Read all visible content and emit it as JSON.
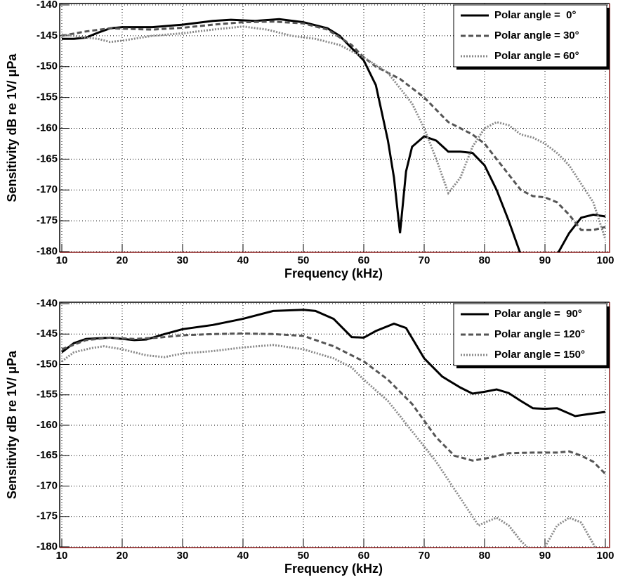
{
  "chart_data": [
    {
      "type": "line",
      "xlabel": "Frequency (kHz)",
      "ylabel": "Sensitivity dB re 1V/ μPa",
      "xlim": [
        10,
        100
      ],
      "ylim": [
        -180,
        -140
      ],
      "xticks": [
        10,
        20,
        30,
        40,
        50,
        60,
        70,
        80,
        90,
        100
      ],
      "yticks": [
        -140,
        -145,
        -150,
        -155,
        -160,
        -165,
        -170,
        -175,
        -180
      ],
      "grid": true,
      "legend": "upper right",
      "series": [
        {
          "name": "Polar angle =  0°",
          "color": "#000000",
          "dash": "solid",
          "x": [
            10,
            12,
            14,
            16,
            18,
            20,
            25,
            30,
            35,
            38,
            42,
            46,
            50,
            54,
            56,
            58,
            60,
            62,
            64,
            65,
            66,
            67,
            68,
            70,
            72,
            74,
            76,
            78,
            80,
            82,
            84,
            86,
            88,
            90,
            92,
            94,
            96,
            98,
            100
          ],
          "values": [
            -145.5,
            -145.5,
            -145.3,
            -144.5,
            -143.8,
            -143.6,
            -143.6,
            -143.2,
            -142.6,
            -142.4,
            -142.6,
            -142.3,
            -142.8,
            -143.8,
            -145,
            -147,
            -149,
            -153,
            -162,
            -168,
            -177,
            -167,
            -163,
            -161.3,
            -162,
            -163.8,
            -163.8,
            -164,
            -166,
            -170,
            -175,
            -180.5,
            -185,
            -185,
            -180.5,
            -177,
            -174.5,
            -174,
            -174.3
          ]
        },
        {
          "name": "Polar angle = 30°",
          "color": "#555555",
          "dash": "dashed",
          "x": [
            10,
            14,
            18,
            25,
            30,
            35,
            40,
            45,
            50,
            54,
            58,
            60,
            62,
            66,
            70,
            72,
            74,
            76,
            78,
            80,
            82,
            84,
            86,
            88,
            90,
            92,
            94,
            96,
            98,
            100
          ],
          "values": [
            -145,
            -144.3,
            -143.8,
            -144,
            -143.7,
            -143.2,
            -142.8,
            -142.7,
            -143,
            -144,
            -146.5,
            -148.5,
            -150,
            -152,
            -155,
            -157,
            -159,
            -160,
            -161,
            -162.5,
            -165,
            -167.5,
            -170,
            -171,
            -171.2,
            -172,
            -174,
            -176.5,
            -176.5,
            -176
          ]
        },
        {
          "name": "Polar angle = 60°",
          "color": "#888888",
          "dash": "dotted",
          "x": [
            10,
            12,
            14,
            16,
            18,
            20,
            25,
            30,
            35,
            40,
            44,
            48,
            52,
            56,
            58,
            60,
            64,
            68,
            70,
            72,
            74,
            76,
            78,
            80,
            82,
            84,
            86,
            88,
            90,
            92,
            94,
            96,
            98,
            100
          ],
          "values": [
            -144.8,
            -145,
            -145.3,
            -145.5,
            -146,
            -145.8,
            -145,
            -144.6,
            -144,
            -143.5,
            -144,
            -145,
            -145.5,
            -146.5,
            -147.5,
            -148.5,
            -151,
            -156,
            -160,
            -165,
            -170.5,
            -168,
            -163,
            -160,
            -159,
            -159.5,
            -161,
            -161.5,
            -162.5,
            -164,
            -166,
            -169,
            -172,
            -178
          ]
        }
      ]
    },
    {
      "type": "line",
      "xlabel": "Frequency (kHz)",
      "ylabel": "Sensitivity dB re 1V/ μPa",
      "xlim": [
        10,
        100
      ],
      "ylim": [
        -180,
        -140
      ],
      "xticks": [
        10,
        20,
        30,
        40,
        50,
        60,
        70,
        80,
        90,
        100
      ],
      "yticks": [
        -140,
        -145,
        -150,
        -155,
        -160,
        -165,
        -170,
        -175,
        -180
      ],
      "grid": true,
      "legend": "upper right",
      "series": [
        {
          "name": "Polar angle =  90°",
          "color": "#000000",
          "dash": "solid",
          "x": [
            10,
            12,
            14,
            18,
            22,
            24,
            27,
            30,
            35,
            40,
            45,
            50,
            52,
            55,
            58,
            60,
            62,
            65,
            67,
            70,
            73,
            76,
            78,
            80,
            82,
            84,
            86,
            88,
            90,
            92,
            95,
            97,
            100
          ],
          "values": [
            -148,
            -146.5,
            -145.8,
            -145.6,
            -146,
            -145.9,
            -145,
            -144.2,
            -143.5,
            -142.5,
            -141.2,
            -141,
            -141.2,
            -142.5,
            -145.5,
            -145.6,
            -144.5,
            -143.3,
            -144,
            -149,
            -152,
            -153.8,
            -154.8,
            -154.5,
            -154.1,
            -154.7,
            -156,
            -157.2,
            -157.3,
            -157.2,
            -158.5,
            -158.2,
            -157.8
          ]
        },
        {
          "name": "Polar angle = 120°",
          "color": "#555555",
          "dash": "dashed",
          "x": [
            10,
            14,
            18,
            22,
            26,
            30,
            35,
            40,
            45,
            50,
            55,
            60,
            64,
            68,
            72,
            75,
            78,
            80,
            84,
            88,
            92,
            94,
            96,
            98,
            100
          ],
          "values": [
            -147.5,
            -146,
            -145.6,
            -145.8,
            -145.6,
            -145.2,
            -145,
            -144.9,
            -145,
            -145.3,
            -147,
            -149.5,
            -152.5,
            -156.5,
            -162,
            -165,
            -165.8,
            -165.5,
            -164.6,
            -164.5,
            -164.5,
            -164.3,
            -165,
            -166,
            -168
          ]
        },
        {
          "name": "Polar angle = 150°",
          "color": "#888888",
          "dash": "dotted",
          "x": [
            10,
            12,
            15,
            17,
            20,
            24,
            27,
            30,
            35,
            40,
            45,
            50,
            55,
            58,
            60,
            64,
            68,
            72,
            76,
            79,
            80,
            82,
            84,
            86,
            88,
            90,
            92,
            94,
            96,
            98,
            100
          ],
          "values": [
            -149.5,
            -148,
            -147.3,
            -147,
            -147.5,
            -148.5,
            -148.8,
            -148.2,
            -147.8,
            -147.2,
            -146.8,
            -147.5,
            -149,
            -150.5,
            -152.5,
            -156,
            -161,
            -166,
            -172,
            -176.5,
            -176,
            -175.2,
            -176.5,
            -179,
            -181,
            -180,
            -176.5,
            -175.2,
            -176,
            -179.5,
            -184
          ]
        }
      ]
    }
  ]
}
